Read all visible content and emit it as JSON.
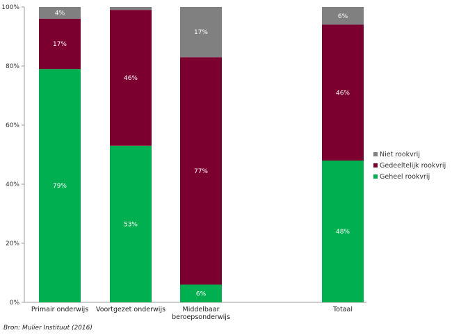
{
  "chart_data": {
    "type": "bar",
    "stacked": true,
    "categories": [
      "Primair onderwijs",
      "Voortgezet onderwijs",
      "Middelbaar beroepsonderwijs",
      "Totaal"
    ],
    "category_lines": [
      [
        "Primair onderwijs"
      ],
      [
        "Voortgezet onderwijs"
      ],
      [
        "Middelbaar",
        "beroepsonderwijs"
      ],
      [
        "Totaal"
      ]
    ],
    "series": [
      {
        "name": "Geheel rookvrij",
        "color": "#00b050",
        "values": [
          79,
          53,
          6,
          48
        ],
        "labels": [
          "79%",
          "53%",
          "6%",
          "48%"
        ]
      },
      {
        "name": "Gedeeltelijk rookvrij",
        "color": "#7b0030",
        "values": [
          17,
          46,
          77,
          46
        ],
        "labels": [
          "17%",
          "46%",
          "77%",
          "46%"
        ]
      },
      {
        "name": "Niet rookvrij",
        "color": "#808080",
        "values": [
          4,
          1,
          17,
          6
        ],
        "labels": [
          "4%",
          "",
          "17%",
          "6%"
        ]
      }
    ],
    "legend_order": [
      "Niet rookvrij",
      "Gedeeltelijk rookvrij",
      "Geheel rookvrij"
    ],
    "y_ticks": [
      0,
      20,
      40,
      60,
      80,
      100
    ],
    "y_tick_labels": [
      "0%",
      "20%",
      "40%",
      "60%",
      "80%",
      "100%"
    ],
    "ylim": [
      0,
      100
    ],
    "legend_position": "right",
    "grid": false
  },
  "source_note": "Bron:  Mulier  Instituut  (2016)"
}
